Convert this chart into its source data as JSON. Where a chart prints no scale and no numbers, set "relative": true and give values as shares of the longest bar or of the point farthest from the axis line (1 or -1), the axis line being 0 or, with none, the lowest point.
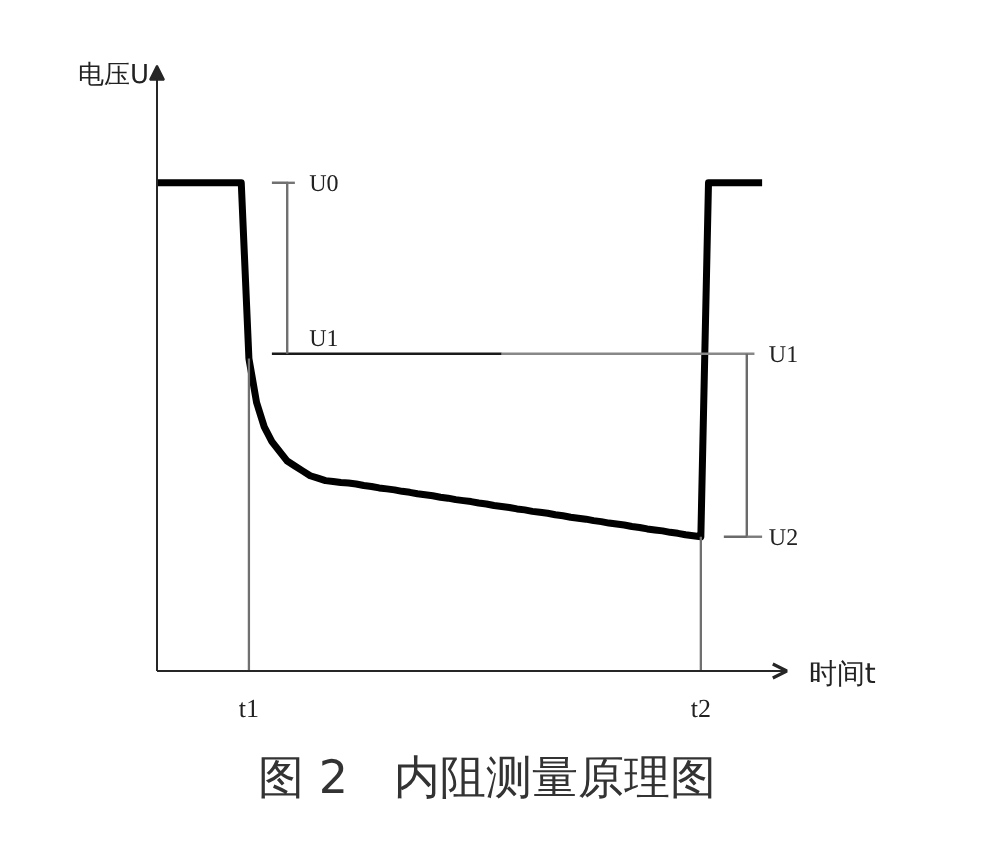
{
  "chart_data": {
    "type": "line",
    "title": "图 2　内阻测量原理图",
    "xlabel": "时间t",
    "ylabel": "电压U",
    "relative": true,
    "categories": [
      null,
      null,
      null,
      null,
      null,
      null,
      null,
      null,
      null,
      null,
      null,
      null,
      "t1",
      null,
      null,
      null,
      null,
      null,
      null,
      null,
      null,
      null,
      null,
      null,
      null,
      null,
      null,
      null,
      null,
      null,
      null,
      null,
      null,
      null,
      null,
      null,
      null,
      null,
      null,
      null,
      null,
      null,
      null,
      null,
      null,
      null,
      null,
      null,
      null,
      null,
      null,
      null,
      null,
      null,
      null,
      null,
      null,
      null,
      null,
      null,
      null,
      null,
      null,
      null,
      null,
      null,
      null,
      null,
      null,
      null,
      null,
      "t2",
      null,
      null,
      null,
      null,
      null,
      null,
      null,
      null
    ],
    "series": [
      {
        "color": "#000000",
        "values": [
          1,
          1,
          1,
          1,
          1,
          1,
          1,
          1,
          1,
          1,
          1,
          1,
          0.64,
          0.55,
          0.5,
          0.47,
          0.45,
          0.43,
          0.42,
          0.41,
          0.4,
          0.395,
          0.39,
          0.388,
          0.386,
          0.385,
          0.383,
          0.38,
          0.378,
          0.375,
          0.373,
          0.371,
          0.368,
          0.366,
          0.363,
          0.361,
          0.359,
          0.356,
          0.354,
          0.351,
          0.349,
          0.347,
          0.344,
          0.342,
          0.339,
          0.337,
          0.335,
          0.332,
          0.33,
          0.327,
          0.325,
          0.323,
          0.32,
          0.318,
          0.315,
          0.313,
          0.311,
          0.308,
          0.306,
          0.303,
          0.301,
          0.299,
          0.296,
          0.294,
          0.291,
          0.289,
          0.287,
          0.284,
          0.282,
          0.279,
          0.277,
          0.275,
          1,
          1,
          1,
          1,
          1,
          1,
          1,
          1
        ]
      },
      {
        "color": "#1a1a1a",
        "values": [
          null,
          null,
          null,
          null,
          null,
          null,
          null,
          null,
          null,
          null,
          null,
          null,
          null,
          null,
          null,
          0.65,
          0.65,
          0.65,
          0.65,
          0.65,
          0.65,
          0.65,
          0.65,
          0.65,
          0.65,
          0.65,
          0.65,
          0.65,
          0.65,
          0.65,
          0.65,
          0.65,
          0.65,
          0.65,
          0.65,
          0.65,
          0.65,
          0.65,
          0.65,
          0.65,
          0.65,
          0.65,
          0.65,
          0.65,
          0.65,
          0.65,
          null,
          null,
          null,
          null,
          null,
          null,
          null,
          null,
          null,
          null,
          null,
          null,
          null,
          null,
          null,
          null,
          null,
          null,
          null,
          null,
          null,
          null,
          null,
          null,
          null,
          null,
          null,
          null,
          null,
          null,
          null,
          null,
          null,
          null
        ]
      },
      {
        "color": "#888888",
        "values": [
          null,
          null,
          null,
          null,
          null,
          null,
          null,
          null,
          null,
          null,
          null,
          null,
          null,
          null,
          null,
          null,
          null,
          null,
          null,
          null,
          null,
          null,
          null,
          null,
          null,
          null,
          null,
          null,
          null,
          null,
          null,
          null,
          null,
          null,
          null,
          null,
          null,
          null,
          null,
          null,
          null,
          null,
          null,
          null,
          null,
          0.65,
          0.65,
          0.65,
          0.65,
          0.65,
          0.65,
          0.65,
          0.65,
          0.65,
          0.65,
          0.65,
          0.65,
          0.65,
          0.65,
          0.65,
          0.65,
          0.65,
          0.65,
          0.65,
          0.65,
          0.65,
          0.65,
          0.65,
          0.65,
          0.65,
          0.65,
          0.65,
          0.65,
          0.65,
          0.65,
          0.65,
          0.65,
          0.65,
          0.65,
          null
        ]
      },
      {
        "type": "step",
        "color": "#707070",
        "values": [
          null,
          null,
          null,
          null,
          null,
          null,
          null,
          null,
          null,
          null,
          null,
          null,
          null,
          null,
          null,
          1,
          1,
          0.65,
          null,
          null,
          null,
          null,
          null,
          null,
          null,
          null,
          null,
          null,
          null,
          null,
          null,
          null,
          null,
          null,
          null,
          null,
          null,
          null,
          null,
          null,
          null,
          null,
          null,
          null,
          null,
          null,
          null,
          null,
          null,
          null,
          null,
          null,
          null,
          null,
          null,
          null,
          null,
          null,
          null,
          null,
          null,
          null,
          null,
          null,
          null,
          null,
          null,
          null,
          null,
          null,
          null,
          null,
          null,
          null,
          null,
          null,
          null,
          null,
          null,
          null
        ]
      },
      {
        "color": "#757575",
        "values": [
          null,
          null,
          null,
          null,
          null,
          null,
          null,
          null,
          null,
          null,
          null,
          null,
          null,
          null,
          null,
          null,
          null,
          1,
          1,
          null,
          null,
          null,
          null,
          null,
          null,
          null,
          null,
          null,
          null,
          null,
          null,
          null,
          null,
          null,
          null,
          null,
          null,
          null,
          null,
          null,
          null,
          null,
          null,
          null,
          null,
          null,
          null,
          null,
          null,
          null,
          null,
          null,
          null,
          null,
          null,
          null,
          null,
          null,
          null,
          null,
          null,
          null,
          null,
          null,
          null,
          null,
          null,
          null,
          null,
          null,
          null,
          null,
          null,
          null,
          null,
          null,
          null,
          null,
          null,
          null
        ]
      },
      {
        "type": "step",
        "color": "#6a6a6a",
        "values": [
          null,
          null,
          null,
          null,
          null,
          null,
          null,
          null,
          null,
          null,
          null,
          null,
          null,
          null,
          null,
          null,
          null,
          null,
          null,
          null,
          null,
          null,
          null,
          null,
          null,
          null,
          null,
          null,
          null,
          null,
          null,
          null,
          null,
          null,
          null,
          null,
          null,
          null,
          null,
          null,
          null,
          null,
          null,
          null,
          null,
          null,
          null,
          null,
          null,
          null,
          null,
          null,
          null,
          null,
          null,
          null,
          null,
          null,
          null,
          null,
          null,
          null,
          null,
          null,
          null,
          null,
          null,
          null,
          null,
          null,
          null,
          null,
          null,
          null,
          0.275,
          0.275,
          0.275,
          0.65,
          null,
          null
        ]
      },
      {
        "color": "#7a7a7a",
        "values": [
          null,
          null,
          null,
          null,
          null,
          null,
          null,
          null,
          null,
          null,
          null,
          null,
          null,
          null,
          null,
          null,
          null,
          null,
          null,
          null,
          null,
          null,
          null,
          null,
          null,
          null,
          null,
          null,
          null,
          null,
          null,
          null,
          null,
          null,
          null,
          null,
          null,
          null,
          null,
          null,
          null,
          null,
          null,
          null,
          null,
          null,
          null,
          null,
          null,
          null,
          null,
          null,
          null,
          null,
          null,
          null,
          null,
          null,
          null,
          null,
          null,
          null,
          null,
          null,
          null,
          null,
          null,
          null,
          null,
          null,
          null,
          null,
          null,
          null,
          null,
          null,
          null,
          0.275,
          0.275,
          0.275
        ]
      },
      {
        "type": "bar",
        "color": "#707070",
        "values": [
          null,
          null,
          null,
          null,
          null,
          null,
          null,
          null,
          null,
          null,
          null,
          null,
          0.64,
          null,
          null,
          null,
          null,
          null,
          null,
          null,
          null,
          null,
          null,
          null,
          null,
          null,
          null,
          null,
          null,
          null,
          null,
          null,
          null,
          null,
          null,
          null,
          null,
          null,
          null,
          null,
          null,
          null,
          null,
          null,
          null,
          null,
          null,
          null,
          null,
          null,
          null,
          null,
          null,
          null,
          null,
          null,
          null,
          null,
          null,
          null,
          null,
          null,
          null,
          null,
          null,
          null,
          null,
          null,
          null,
          null,
          null,
          0.275,
          null,
          null,
          null,
          null,
          null,
          null,
          null,
          null
        ]
      }
    ],
    "annotations": [
      "U0",
      "U1",
      "U1",
      "U2"
    ]
  }
}
